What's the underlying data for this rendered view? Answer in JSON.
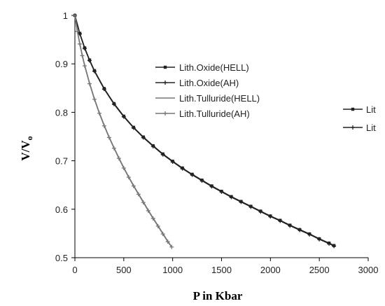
{
  "chart_data": {
    "type": "line",
    "title": "",
    "xlabel": "P in Kbar",
    "ylabel_main": "V/V",
    "ylabel_sub": "o",
    "xlim": [
      0,
      3000
    ],
    "ylim": [
      0.5,
      1.0
    ],
    "xticks": [
      0,
      500,
      1000,
      1500,
      2000,
      2500,
      3000
    ],
    "yticks": [
      0.5,
      0.6,
      0.7,
      0.8,
      0.9,
      1.0
    ],
    "ytick_labels": [
      "0.5",
      "0.6",
      "0.7",
      "0.8",
      "0.9",
      "1"
    ],
    "grid": false,
    "legend_position": "center",
    "series": [
      {
        "name": "Lith.Oxide(HELL)",
        "marker": "square",
        "color": "#222222",
        "x": [
          0,
          50,
          100,
          150,
          200,
          300,
          400,
          500,
          600,
          700,
          800,
          900,
          1000,
          1100,
          1200,
          1300,
          1400,
          1500,
          1600,
          1700,
          1800,
          1900,
          2000,
          2100,
          2200,
          2300,
          2400,
          2500,
          2600,
          2650
        ],
        "y": [
          1.0,
          0.963,
          0.933,
          0.908,
          0.886,
          0.849,
          0.818,
          0.792,
          0.769,
          0.749,
          0.731,
          0.714,
          0.699,
          0.685,
          0.672,
          0.66,
          0.648,
          0.637,
          0.626,
          0.616,
          0.606,
          0.596,
          0.586,
          0.577,
          0.567,
          0.558,
          0.549,
          0.539,
          0.53,
          0.525
        ]
      },
      {
        "name": "Lith.Oxide(AH)",
        "marker": "plus",
        "color": "#222222",
        "x": [
          0,
          50,
          100,
          150,
          200,
          300,
          400,
          500,
          600,
          700,
          800,
          900,
          1000,
          1100,
          1200,
          1300,
          1400,
          1500,
          1600,
          1700,
          1800,
          1900,
          2000,
          2100,
          2200,
          2300,
          2400,
          2500,
          2600,
          2650
        ],
        "y": [
          1.0,
          0.962,
          0.932,
          0.907,
          0.885,
          0.848,
          0.817,
          0.791,
          0.768,
          0.748,
          0.73,
          0.713,
          0.698,
          0.684,
          0.671,
          0.659,
          0.647,
          0.636,
          0.625,
          0.615,
          0.605,
          0.595,
          0.585,
          0.576,
          0.566,
          0.557,
          0.548,
          0.538,
          0.529,
          0.524
        ]
      },
      {
        "name": "Lith.Tulluride(HELL)",
        "marker": "none",
        "color": "#777777",
        "x": [
          0,
          25,
          50,
          75,
          100,
          150,
          200,
          250,
          300,
          350,
          400,
          450,
          500,
          550,
          600,
          650,
          700,
          750,
          800,
          850,
          900,
          950,
          980
        ],
        "y": [
          1.0,
          0.968,
          0.942,
          0.918,
          0.897,
          0.86,
          0.828,
          0.799,
          0.773,
          0.749,
          0.727,
          0.706,
          0.686,
          0.667,
          0.649,
          0.632,
          0.615,
          0.598,
          0.582,
          0.566,
          0.55,
          0.534,
          0.525
        ]
      },
      {
        "name": "Lith.Tulluride(AH)",
        "marker": "plus",
        "color": "#777777",
        "x": [
          0,
          25,
          50,
          75,
          100,
          150,
          200,
          250,
          300,
          350,
          400,
          450,
          500,
          550,
          600,
          650,
          700,
          750,
          800,
          850,
          900,
          950,
          990
        ],
        "y": [
          1.0,
          0.967,
          0.941,
          0.917,
          0.896,
          0.859,
          0.827,
          0.798,
          0.772,
          0.748,
          0.726,
          0.705,
          0.685,
          0.666,
          0.648,
          0.631,
          0.614,
          0.597,
          0.581,
          0.565,
          0.549,
          0.533,
          0.522
        ]
      }
    ],
    "partial_legend": {
      "labels": [
        "Lit",
        "Lit"
      ],
      "markers": [
        "square",
        "plus"
      ]
    }
  }
}
